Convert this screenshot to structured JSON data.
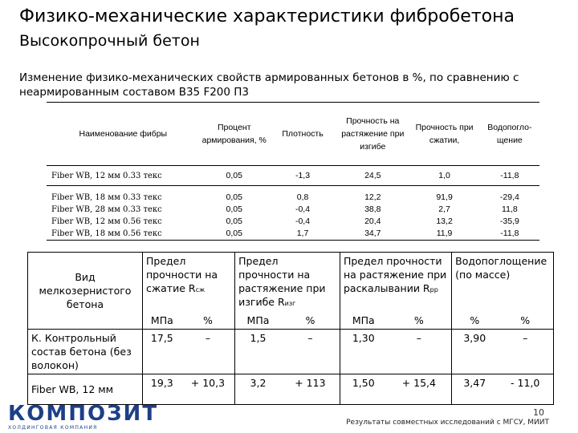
{
  "title": "Физико-механические характеристики фибробетона",
  "subtitle": "Высокопрочный бетон",
  "description": "Изменение физико-механических свойств армированных бетонов в %, по сравнению с неармированным составом B35 F200 П3",
  "table1": {
    "headers": {
      "name": "Наименование фибры",
      "percent": "Процент армирования, %",
      "density": "Плотность",
      "tensile": "Прочность на растяжение при изгибе",
      "compression": "Прочность при сжатии,",
      "absorption": "Водопогло- щение"
    },
    "rows": [
      {
        "name": "Fiber WB, 12 мм 0.33 текс",
        "percent": "0,05",
        "density": "-1,3",
        "tensile": "24,5",
        "compression": "1,0",
        "absorption": "-11,8"
      },
      {
        "name": "Fiber WB, 18 мм 0.33 текс",
        "percent": "0,05",
        "density": "0,8",
        "tensile": "12,2",
        "compression": "91,9",
        "absorption": "-29,4"
      },
      {
        "name": "Fiber WB, 28 мм 0.33 текс",
        "percent": "0,05",
        "density": "-0,4",
        "tensile": "38,8",
        "compression": "2,7",
        "absorption": "11,8"
      },
      {
        "name": "Fiber WB, 12 мм 0.56 текс",
        "percent": "0,05",
        "density": "-0,4",
        "tensile": "20,4",
        "compression": "13,2",
        "absorption": "-35,9"
      },
      {
        "name": "Fiber WB, 18 мм 0.56 текс",
        "percent": "0,05",
        "density": "1,7",
        "tensile": "34,7",
        "compression": "11,9",
        "absorption": "-11,8"
      }
    ]
  },
  "table2": {
    "headers": {
      "type": "Вид мелкозернистого бетона",
      "compression": "Предел прочности на сжатие R",
      "compression_sub": "сж",
      "bending": "Предел прочности на растяжение при изгибе R",
      "bending_sub": "изг",
      "splitting": "Предел прочности на растяжение при раскалывании R",
      "splitting_sub": "рр",
      "absorption": "Водопоглощение (по массе)"
    },
    "units": [
      "МПа",
      "%",
      "МПа",
      "%",
      "МПа",
      "%",
      "%",
      "%"
    ],
    "rows": [
      {
        "name": "К. Контрольный состав бетона (без волокон)",
        "values": [
          "17,5",
          "–",
          "1,5",
          "–",
          "1,30",
          "–",
          "3,90",
          "–"
        ]
      },
      {
        "name": "Fiber WB, 12 мм",
        "values": [
          "19,3",
          "+ 10,3",
          "3,2",
          "+ 113",
          "1,50",
          "+ 15,4",
          "3,47",
          "- 11,0"
        ]
      }
    ]
  },
  "logo": {
    "name": "КОМПОЗИТ",
    "tagline": "ХОЛДИНГОВАЯ КОМПАНИЯ",
    "color": "#1e3f88"
  },
  "page_number": "10",
  "footer": "Результаты совместных исследований с МГСУ, МИИТ"
}
